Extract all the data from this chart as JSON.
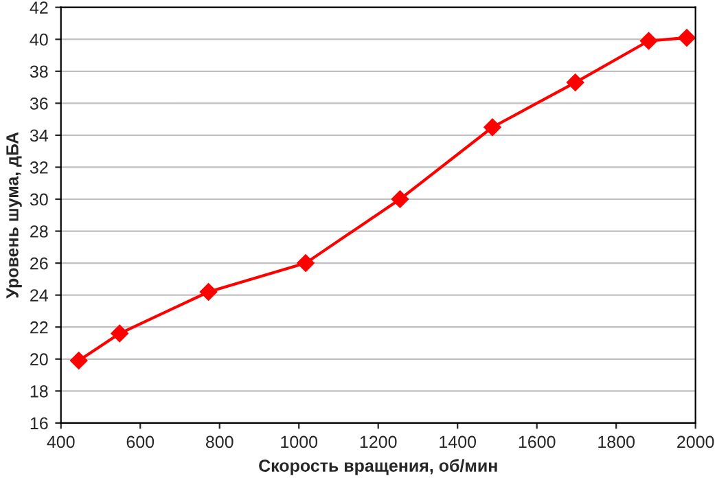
{
  "chart_data": {
    "type": "line",
    "xlabel": "Скорость вращения, об/мин",
    "ylabel": "Уровень шума, дБА",
    "x": [
      445,
      548,
      772,
      1017,
      1255,
      1488,
      1697,
      1882,
      1978
    ],
    "series": [
      {
        "color": "#ff0000",
        "values": [
          19.9,
          21.6,
          24.2,
          26.0,
          30.0,
          34.5,
          37.3,
          39.9,
          40.1
        ]
      }
    ],
    "xlim": [
      400,
      2000
    ],
    "xticks": [
      400,
      600,
      800,
      1000,
      1200,
      1400,
      1600,
      1800,
      2000
    ],
    "ylim": [
      16,
      42
    ],
    "yticks": [
      16,
      18,
      20,
      22,
      24,
      26,
      28,
      30,
      32,
      34,
      36,
      38,
      40,
      42
    ],
    "grid": "y",
    "marker": "diamond",
    "line_style": "solid"
  }
}
